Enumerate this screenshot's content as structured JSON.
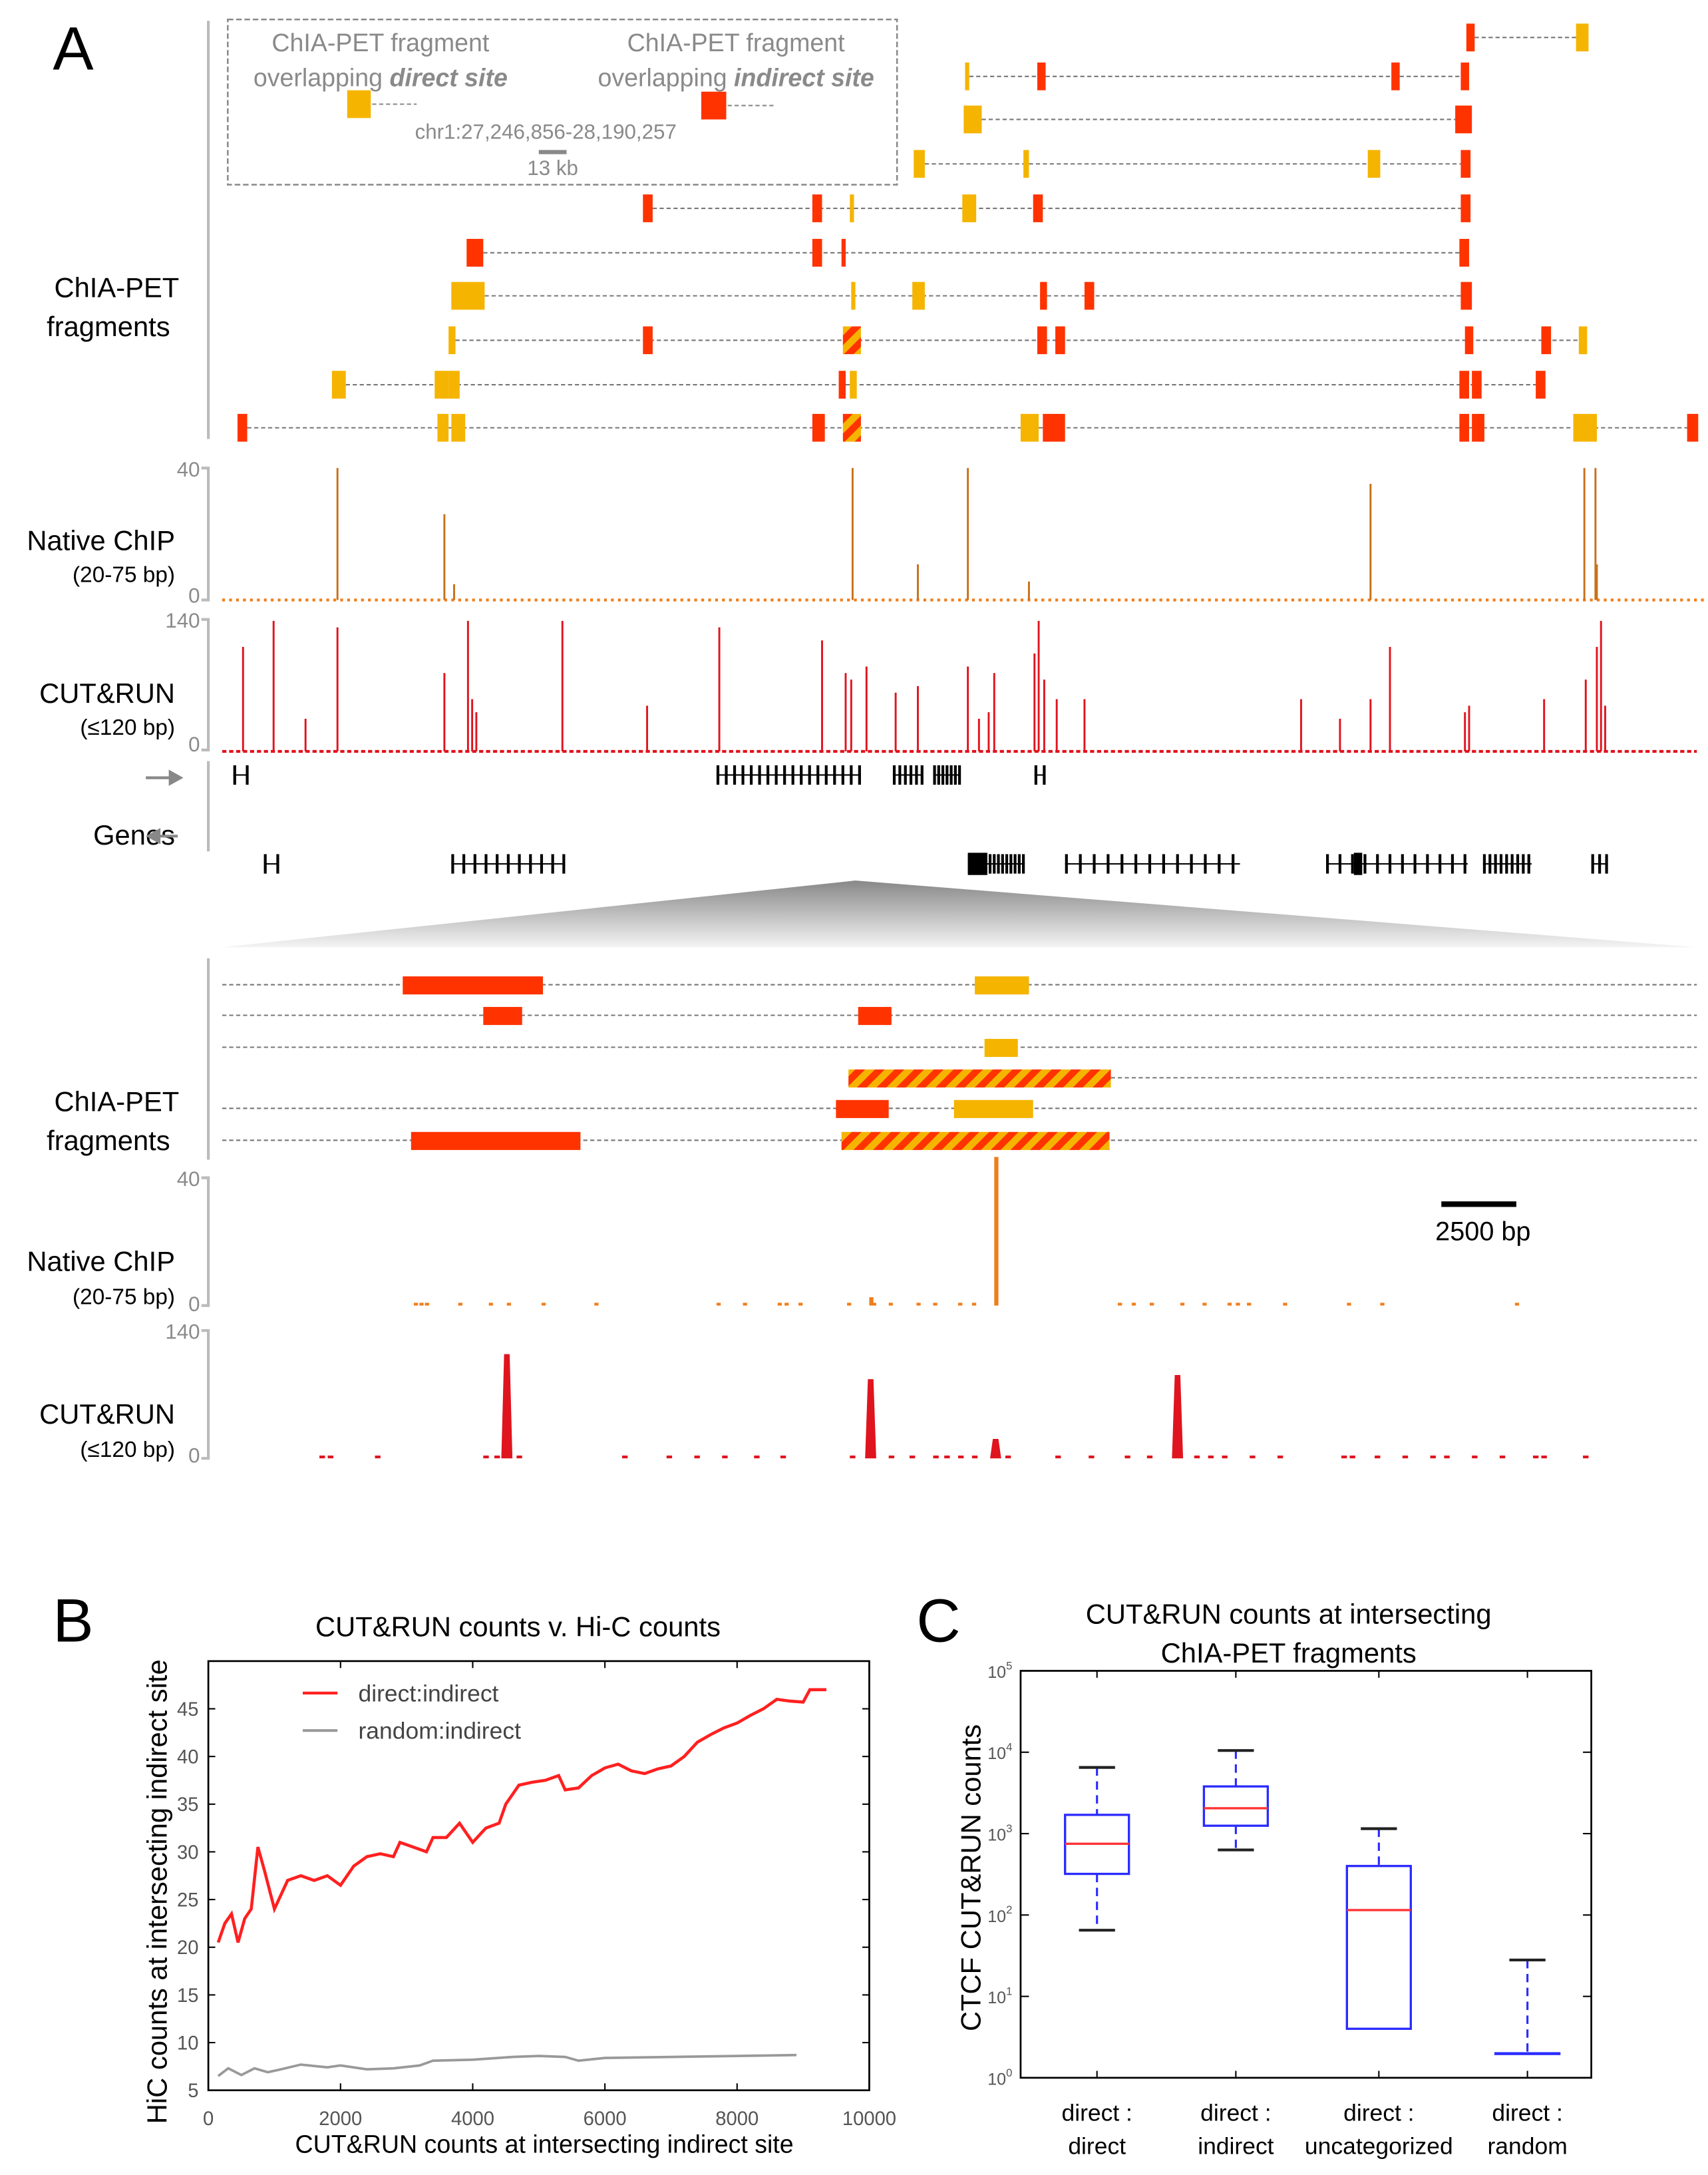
{
  "colors": {
    "direct": "#f5b400",
    "indirect": "#ff3300",
    "native_chip": "#f07d1a",
    "cut_and_run": "#e0141e",
    "hic_direct": "#ff2020",
    "hic_random": "#999999",
    "box": "#2b2bff",
    "median": "#ff3333"
  },
  "panel_a": {
    "panel_letter": "A",
    "legend": {
      "direct_line1": "ChIA-PET fragment",
      "direct_line2_plain": "overlapping ",
      "direct_line2_em": "direct site",
      "indirect_line1": "ChIA-PET fragment",
      "indirect_line2_plain": "overlapping ",
      "indirect_line2_em": "indirect site",
      "region": "chr1:27,246,856-28,190,257",
      "scale": "13 kb"
    },
    "tracks": {
      "chiapet_line1": "ChIA-PET",
      "chiapet_line2": "fragments",
      "native_title": "Native ChIP",
      "native_sub": "(20-75 bp)",
      "native_max": "40",
      "native_min": "0",
      "cutrun_title": "CUT&RUN",
      "cutrun_sub": "(≤120 bp)",
      "cutrun_max": "140",
      "cutrun_min": "0",
      "genes": "Genes"
    },
    "zoom": {
      "chiapet_line1": "ChIA-PET",
      "chiapet_line2": "fragments",
      "native_title": "Native ChIP",
      "native_sub": "(20-75 bp)",
      "native_max": "40",
      "native_min": "0",
      "cutrun_title": "CUT&RUN",
      "cutrun_sub": "(≤120 bp)",
      "cutrun_max": "140",
      "cutrun_min": "0",
      "scale": "2500 bp"
    }
  },
  "chart_data": [
    {
      "panel_letter": "B",
      "type": "line",
      "title": "CUT&RUN counts v. Hi-C counts",
      "xlabel": "CUT&RUN counts at intersecting indirect site",
      "ylabel": "HiC counts at intersecting indirect site",
      "xlim": [
        0,
        10000
      ],
      "ylim": [
        5,
        50
      ],
      "xticks": [
        0,
        2000,
        4000,
        6000,
        8000,
        10000
      ],
      "xtick_labels": [
        "0",
        "2000",
        "4000",
        "6000",
        "8000",
        "10000"
      ],
      "yticks": [
        5,
        10,
        15,
        20,
        25,
        30,
        35,
        40,
        45
      ],
      "legend_position": "top-left",
      "grid": false,
      "series": [
        {
          "name": "direct:indirect",
          "color": "#ff2020",
          "x": [
            150,
            250,
            350,
            450,
            550,
            650,
            750,
            850,
            1000,
            1200,
            1400,
            1600,
            1800,
            2000,
            2200,
            2400,
            2600,
            2800,
            2900,
            3100,
            3300,
            3400,
            3600,
            3800,
            4000,
            4200,
            4400,
            4500,
            4700,
            4900,
            5100,
            5300,
            5400,
            5600,
            5800,
            6000,
            6200,
            6400,
            6600,
            6800,
            7000,
            7200,
            7400,
            7600,
            7800,
            8000,
            8200,
            8400,
            8600,
            8800,
            9000,
            9100,
            9350
          ],
          "y": [
            20.5,
            22.5,
            23.5,
            20.5,
            23,
            24,
            30.5,
            28,
            24,
            27,
            27.5,
            27,
            27.5,
            26.5,
            28.5,
            29.5,
            29.8,
            29.5,
            31,
            30.5,
            30,
            31.5,
            31.5,
            33,
            31,
            32.5,
            33,
            35,
            37,
            37.3,
            37.5,
            38,
            36.5,
            36.7,
            38,
            38.8,
            39.2,
            38.5,
            38.2,
            38.7,
            39,
            40,
            41.5,
            42.3,
            43,
            43.5,
            44.3,
            45,
            46,
            45.8,
            45.7,
            47,
            47
          ]
        },
        {
          "name": "random:indirect",
          "color": "#999999",
          "x": [
            150,
            300,
            500,
            700,
            900,
            1100,
            1400,
            1800,
            2000,
            2400,
            2800,
            3200,
            3400,
            4000,
            4600,
            5000,
            5400,
            5600,
            6000,
            7000,
            8000,
            8900
          ],
          "y": [
            6.5,
            7.3,
            6.6,
            7.3,
            6.9,
            7.2,
            7.7,
            7.4,
            7.6,
            7.2,
            7.3,
            7.6,
            8.1,
            8.2,
            8.5,
            8.6,
            8.5,
            8.1,
            8.4,
            8.5,
            8.6,
            8.7
          ]
        }
      ]
    },
    {
      "panel_letter": "C",
      "type": "box",
      "title_line1": "CUT&RUN counts at intersecting",
      "title_line2": "ChIA-PET fragments",
      "ylabel": "CTCF CUT&RUN counts",
      "yscale": "log",
      "ylim": [
        1,
        100000
      ],
      "ytick_exponents": [
        "0",
        "1",
        "2",
        "3",
        "4",
        "5"
      ],
      "categories": [
        {
          "line1": "direct :",
          "line2": "direct"
        },
        {
          "line1": "direct :",
          "line2": "indirect"
        },
        {
          "line1": "direct :",
          "line2": "uncategorized"
        },
        {
          "line1": "direct :",
          "line2": "random"
        }
      ],
      "boxes": [
        {
          "whisker_low": 65,
          "q1": 320,
          "median": 750,
          "q3": 1700,
          "whisker_high": 6500
        },
        {
          "whisker_low": 630,
          "q1": 1250,
          "median": 2050,
          "q3": 3800,
          "whisker_high": 10500
        },
        {
          "whisker_low": 4,
          "q1": 4,
          "median": 115,
          "q3": 400,
          "whisker_high": 1150
        },
        {
          "whisker_low": 2,
          "q1": 2,
          "median": 2,
          "q3": 2,
          "whisker_high": 28
        }
      ]
    }
  ]
}
